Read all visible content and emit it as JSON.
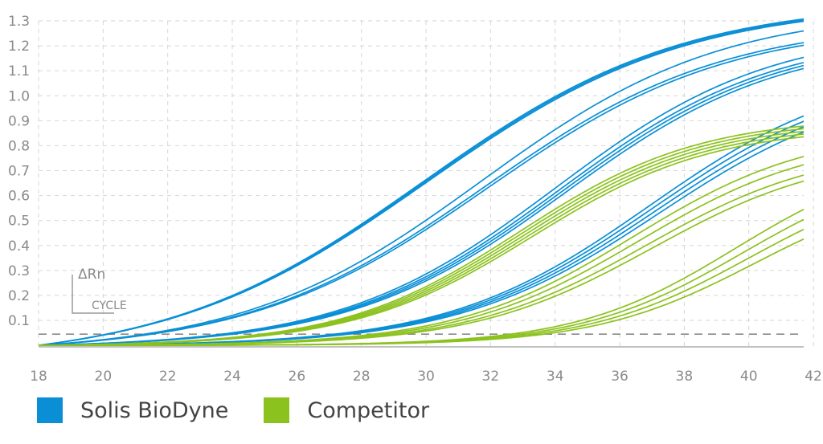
{
  "chart_data": {
    "type": "line",
    "x_ticks": [
      18,
      20,
      22,
      24,
      26,
      28,
      30,
      32,
      34,
      36,
      38,
      40,
      42
    ],
    "y_ticks": [
      0.1,
      0.2,
      0.3,
      0.4,
      0.5,
      0.6,
      0.7,
      0.8,
      0.9,
      1.0,
      1.1,
      1.2,
      1.3
    ],
    "xlim": [
      18,
      41.7
    ],
    "ylim": [
      -0.006,
      1.3
    ],
    "threshold": 0.045,
    "inset": {
      "y_label": "ΔRn",
      "x_label": "CYCLE"
    },
    "legend": [
      {
        "name": "Solis BioDyne",
        "color": "#0a8fd6"
      },
      {
        "name": "Competitor",
        "color": "#8cc21e"
      }
    ],
    "series": [
      {
        "name": "Solis BioDyne",
        "color": "#0a8fd6",
        "curves": [
          {
            "mid": 29.9,
            "max": 1.45,
            "k": 0.25
          },
          {
            "mid": 29.95,
            "max": 1.445,
            "k": 0.25
          },
          {
            "mid": 30.0,
            "max": 1.44,
            "k": 0.25
          },
          {
            "mid": 31.7,
            "max": 1.38,
            "k": 0.27
          },
          {
            "mid": 31.8,
            "max": 1.33,
            "k": 0.27
          },
          {
            "mid": 31.9,
            "max": 1.32,
            "k": 0.27
          },
          {
            "mid": 34.0,
            "max": 1.28,
            "k": 0.3
          },
          {
            "mid": 34.1,
            "max": 1.26,
            "k": 0.3
          },
          {
            "mid": 34.2,
            "max": 1.25,
            "k": 0.3
          },
          {
            "mid": 34.3,
            "max": 1.24,
            "k": 0.3
          },
          {
            "mid": 36.9,
            "max": 1.12,
            "k": 0.32
          },
          {
            "mid": 37.0,
            "max": 1.1,
            "k": 0.32
          },
          {
            "mid": 37.1,
            "max": 1.08,
            "k": 0.32
          },
          {
            "mid": 37.2,
            "max": 1.06,
            "k": 0.32
          }
        ]
      },
      {
        "name": "Competitor",
        "color": "#8cc21e",
        "curves": [
          {
            "mid": 32.9,
            "max": 0.92,
            "k": 0.36
          },
          {
            "mid": 33.0,
            "max": 0.91,
            "k": 0.36
          },
          {
            "mid": 33.1,
            "max": 0.9,
            "k": 0.36
          },
          {
            "mid": 33.2,
            "max": 0.89,
            "k": 0.36
          },
          {
            "mid": 33.3,
            "max": 0.88,
            "k": 0.36
          },
          {
            "mid": 36.4,
            "max": 0.87,
            "k": 0.36
          },
          {
            "mid": 36.6,
            "max": 0.84,
            "k": 0.36
          },
          {
            "mid": 36.8,
            "max": 0.8,
            "k": 0.36
          },
          {
            "mid": 37.0,
            "max": 0.78,
            "k": 0.36
          },
          {
            "mid": 39.6,
            "max": 0.78,
            "k": 0.4
          },
          {
            "mid": 39.8,
            "max": 0.74,
            "k": 0.4
          },
          {
            "mid": 40.0,
            "max": 0.7,
            "k": 0.4
          },
          {
            "mid": 40.2,
            "max": 0.66,
            "k": 0.4
          }
        ]
      }
    ]
  }
}
